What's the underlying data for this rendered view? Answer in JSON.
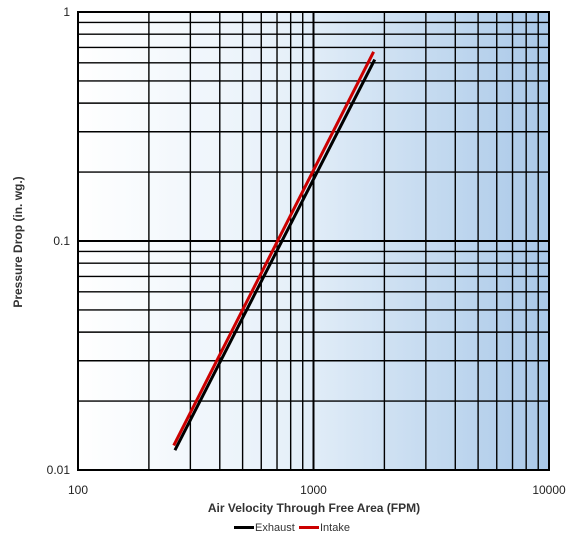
{
  "chart_data": {
    "type": "line",
    "title": "",
    "xlabel": "Air Velocity Through Free Area (FPM)",
    "ylabel": "Pressure Drop (in. wg.)",
    "xscale": "log",
    "yscale": "log",
    "xlim": [
      100,
      10000
    ],
    "ylim": [
      0.01,
      1
    ],
    "x_tick_labels": [
      "100",
      "1000",
      "10000"
    ],
    "y_tick_labels": [
      "0.01",
      "0.1",
      "1"
    ],
    "grid": true,
    "legend_position": "bottom-center",
    "series": [
      {
        "name": "Exhaust",
        "color": "#000000",
        "x": [
          258,
          1820
        ],
        "y": [
          0.0122,
          0.62
        ]
      },
      {
        "name": "Intake",
        "color": "#cc0000",
        "x": [
          255,
          1800
        ],
        "y": [
          0.0128,
          0.67
        ]
      }
    ]
  }
}
